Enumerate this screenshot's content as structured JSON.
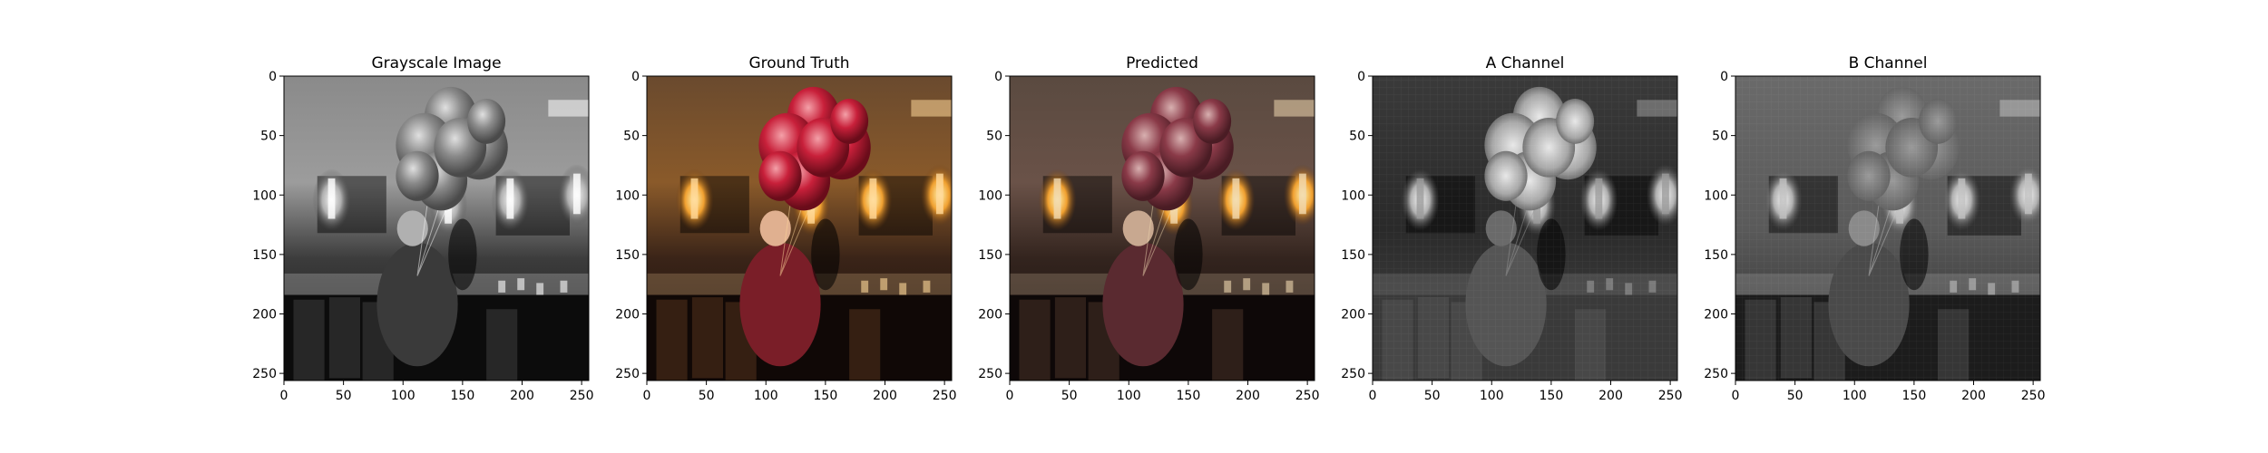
{
  "figure": {
    "panels": [
      {
        "title": "Grayscale Image",
        "kind": "grayscale"
      },
      {
        "title": "Ground Truth",
        "kind": "color"
      },
      {
        "title": "Predicted",
        "kind": "color-muted"
      },
      {
        "title": "A Channel",
        "kind": "channel-a"
      },
      {
        "title": "B Channel",
        "kind": "channel-b"
      }
    ],
    "axes": {
      "x_ticks": [
        "0",
        "50",
        "100",
        "150",
        "200",
        "250"
      ],
      "y_ticks": [
        "0",
        "50",
        "100",
        "150",
        "200",
        "250"
      ],
      "range": [
        0,
        256
      ]
    }
  }
}
